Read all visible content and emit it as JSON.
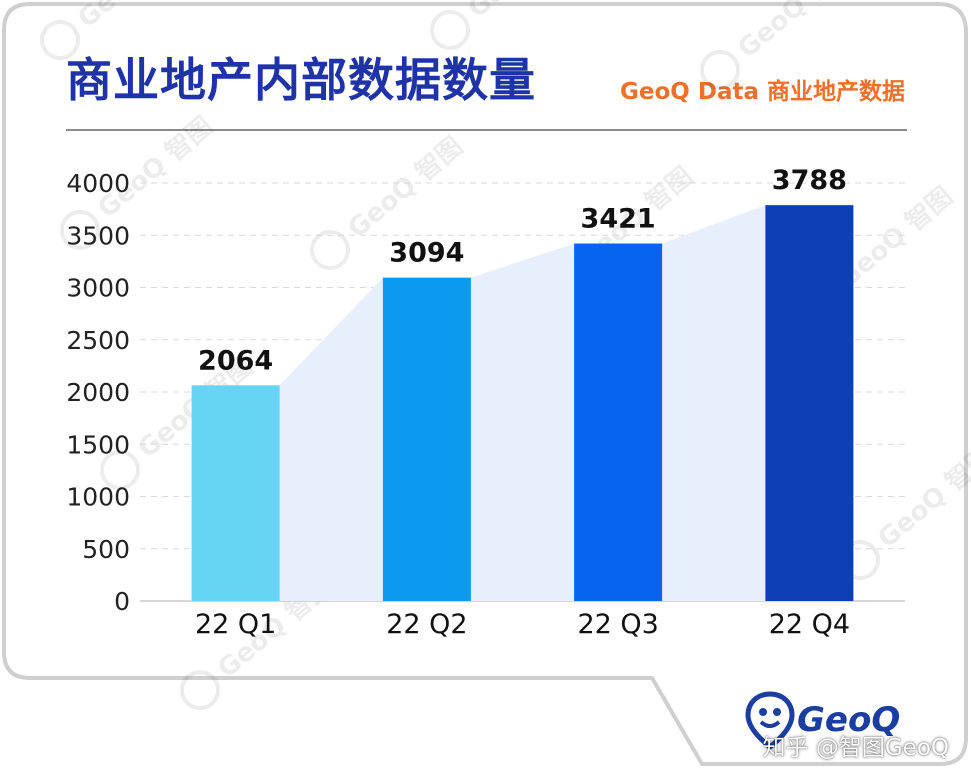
{
  "header": {
    "title": "商业地产内部数据数量",
    "subtitle": "GeoQ Data 商业地产数据"
  },
  "chart_data": {
    "type": "bar",
    "categories": [
      "22 Q1",
      "22 Q2",
      "22 Q3",
      "22 Q4"
    ],
    "values": [
      2064,
      3094,
      3421,
      3788
    ],
    "ylim": [
      0,
      4000
    ],
    "yticks": [
      0,
      500,
      1000,
      1500,
      2000,
      2500,
      3000,
      3500,
      4000
    ],
    "grid": true,
    "bar_colors": [
      "#66d4f5",
      "#0a9af0",
      "#0764f0",
      "#0f3fb5"
    ],
    "trend_area_color": "#e7effd"
  },
  "footer": {
    "logo_text": "GeoQ",
    "credit": "知乎 @智图GeoQ"
  },
  "watermark": {
    "text": "GeoQ 智图"
  },
  "colors": {
    "title": "#1f33a8",
    "subtitle": "#f0702a",
    "logo": "#1a3fa0"
  }
}
